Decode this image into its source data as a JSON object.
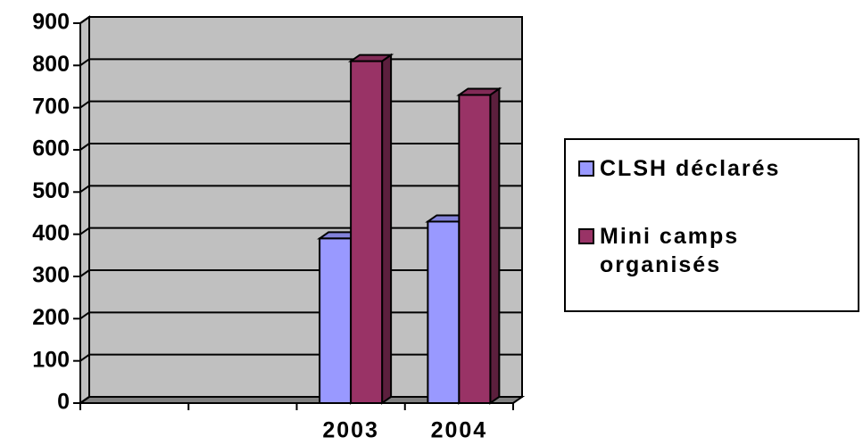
{
  "chart_data": {
    "type": "bar",
    "categories": [
      null,
      null,
      "2003",
      "2004"
    ],
    "series": [
      {
        "name": "CLSH déclarés",
        "color": "#9999ff",
        "values": [
          null,
          null,
          390,
          430
        ]
      },
      {
        "name": "Mini camps organisés",
        "color": "#993366",
        "values": [
          null,
          null,
          810,
          730
        ]
      }
    ],
    "ylim": [
      0,
      900
    ],
    "yticks": [
      0,
      100,
      200,
      300,
      400,
      500,
      600,
      700,
      800,
      900
    ],
    "grid": true,
    "legend": "right"
  }
}
